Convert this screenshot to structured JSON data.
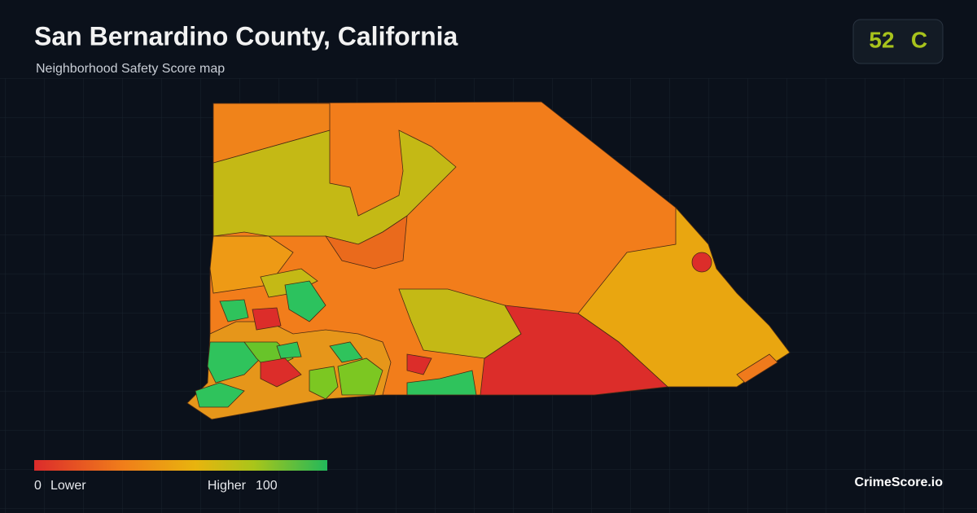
{
  "header": {
    "title": "San Bernardino County, California",
    "subtitle": "Neighborhood Safety Score map"
  },
  "score": {
    "value": 52,
    "grade": "C"
  },
  "legend": {
    "min": 0,
    "min_label": "Lower",
    "max_label": "Higher",
    "max": 100
  },
  "brand": "CrimeScore.io"
}
